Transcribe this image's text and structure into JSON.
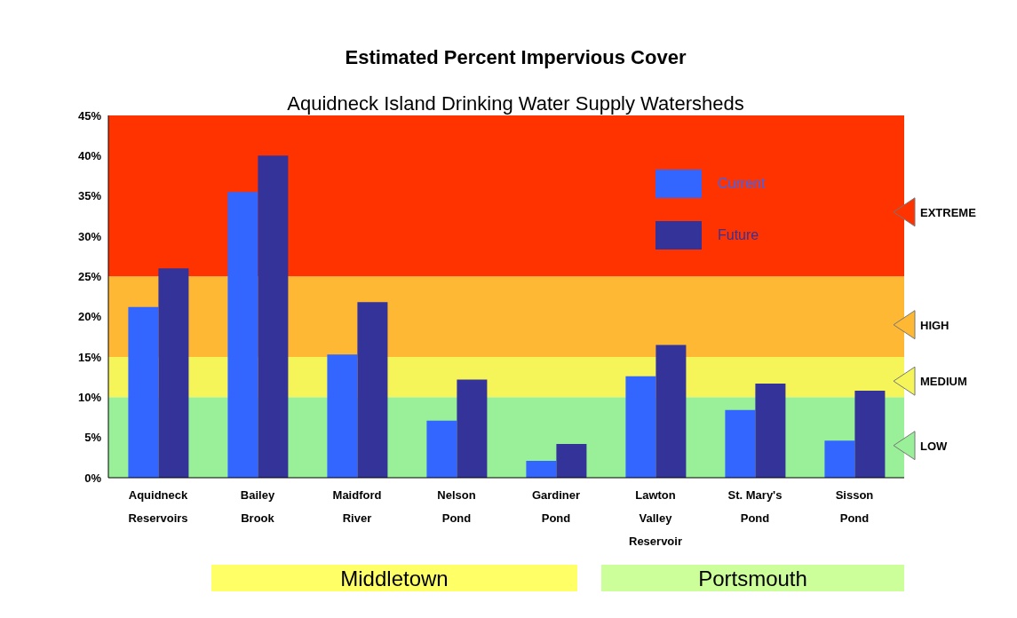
{
  "chart_data": {
    "type": "bar",
    "title": "Estimated Percent Impervious Cover",
    "subtitle": "Aquidneck Island Drinking Water Supply Watersheds",
    "categories": [
      "Aquidneck Reservoirs",
      "Bailey Brook",
      "Maidford River",
      "Nelson Pond",
      "Gardiner Pond",
      "Lawton Valley Reservoir",
      "St. Mary's Pond",
      "Sisson Pond"
    ],
    "series": [
      {
        "name": "Current",
        "color": "#3366ff",
        "values": [
          21.2,
          35.5,
          15.3,
          7.1,
          2.1,
          12.6,
          8.4,
          4.6
        ]
      },
      {
        "name": "Future",
        "color": "#333399",
        "values": [
          26,
          40,
          21.8,
          12.2,
          4.2,
          16.5,
          11.7,
          10.8
        ]
      }
    ],
    "ylim": [
      0,
      45
    ],
    "yticks": [
      {
        "value": 0,
        "label": "0%"
      },
      {
        "value": 5,
        "label": "5%"
      },
      {
        "value": 10,
        "label": "10%"
      },
      {
        "value": 15,
        "label": "15%"
      },
      {
        "value": 20,
        "label": "20%"
      },
      {
        "value": 25,
        "label": "25%"
      },
      {
        "value": 30,
        "label": "30%"
      },
      {
        "value": 35,
        "label": "35%"
      },
      {
        "value": 40,
        "label": "40%"
      },
      {
        "value": 45,
        "label": "45%"
      }
    ],
    "bands": [
      {
        "axis": "y",
        "from": 0,
        "to": 10,
        "label": "LOW",
        "color": "#99f099"
      },
      {
        "axis": "y",
        "from": 10,
        "to": 15,
        "label": "MEDIUM",
        "color": "#f5f55a"
      },
      {
        "axis": "y",
        "from": 15,
        "to": 25,
        "label": "HIGH",
        "color": "#ffb833"
      },
      {
        "axis": "y",
        "from": 25,
        "to": 45,
        "label": "EXTREME",
        "color": "#ff3300"
      }
    ],
    "annotations": [
      "Middletown",
      "Portsmouth"
    ],
    "legend": "top right"
  }
}
